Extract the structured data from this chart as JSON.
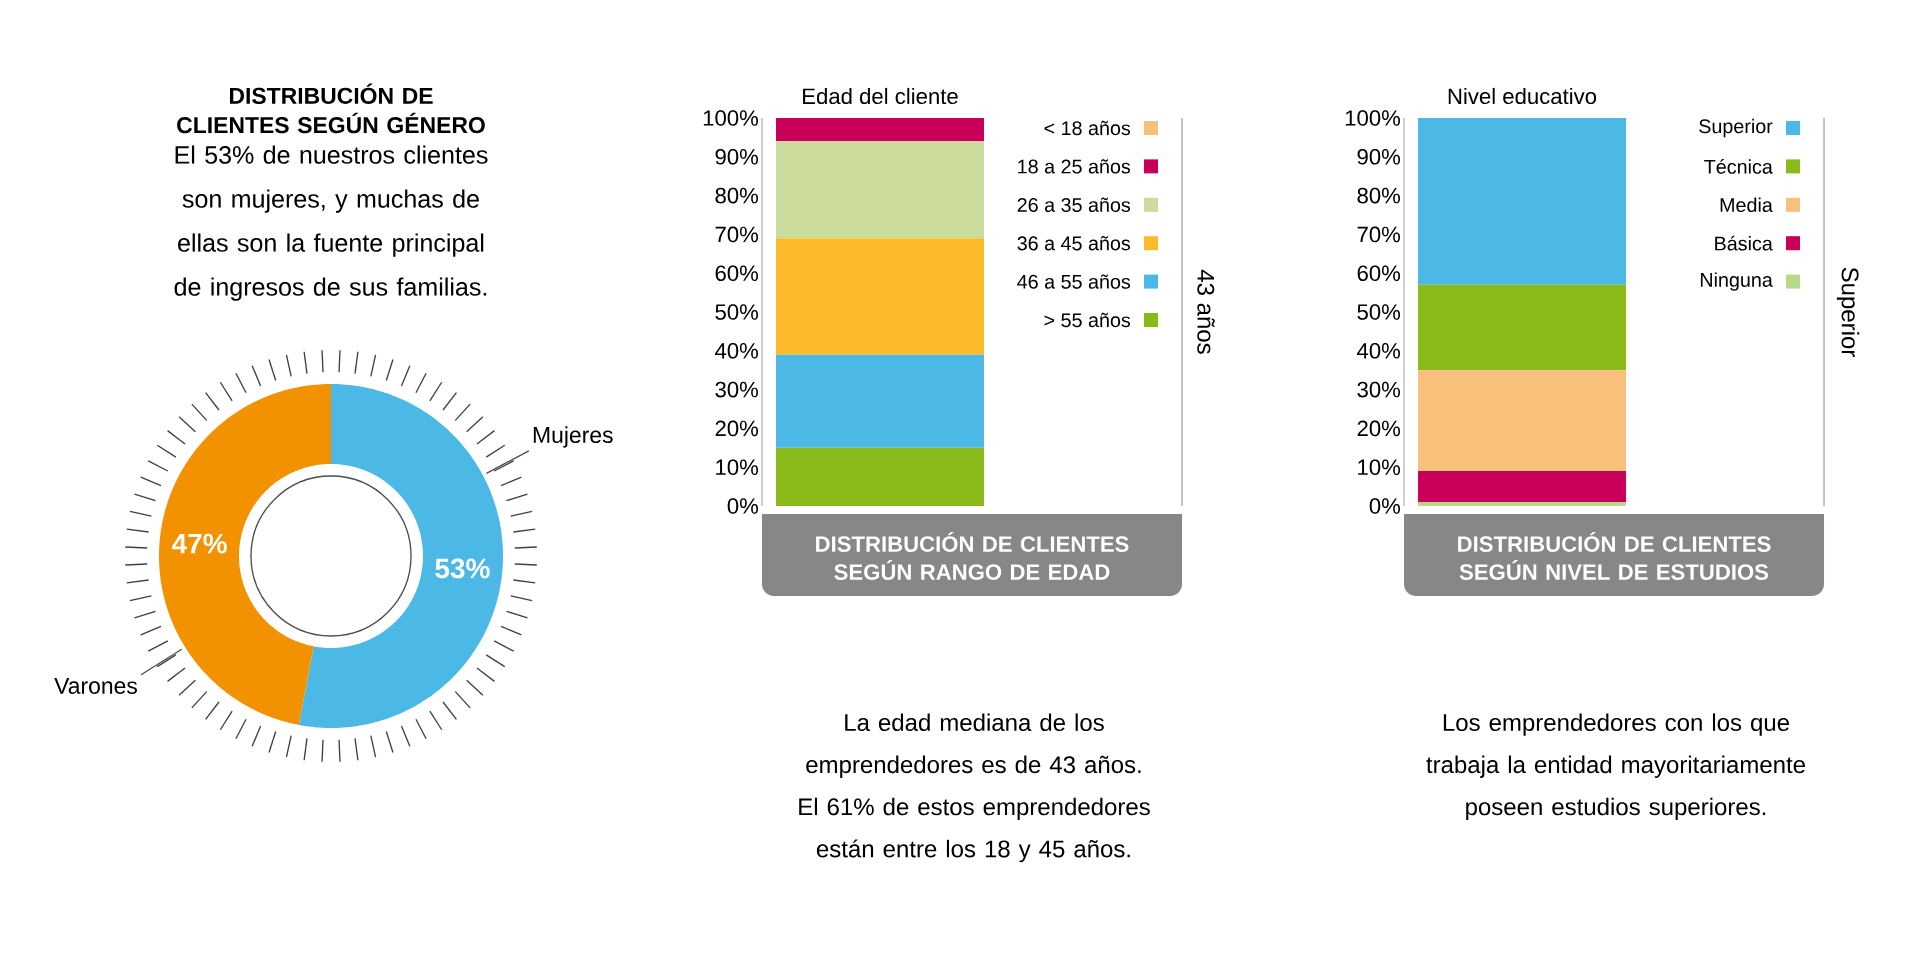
{
  "chart_data": [
    {
      "type": "donut",
      "title": "DISTRIBUCIÓN DE CLIENTES SEGÚN GÉNERO",
      "subtitle": "El 53% de nuestros clientes son mujeres, y muchas de ellas son la fuente principal de ingresos de sus familias.",
      "categories": [
        "Mujeres",
        "Varones"
      ],
      "values": [
        53,
        47
      ],
      "colors": [
        "#4cb8e5",
        "#f39200"
      ],
      "value_labels": [
        "53%",
        "47%"
      ]
    },
    {
      "type": "bar",
      "stacked": true,
      "title": "DISTRIBUCIÓN DE CLIENTES SEGÚN RANGO DE EDAD",
      "subtitle": "Edad del cliente",
      "categories": [
        null
      ],
      "legend": "right",
      "series": [
        {
          "name": "> 55 años",
          "color": "#8aba1a",
          "values": [
            15
          ]
        },
        {
          "name": "46 a 55 años",
          "color": "#4cb8e5",
          "values": [
            24
          ]
        },
        {
          "name": "36 a 45 años",
          "color": "#fbbb2a",
          "values": [
            30
          ]
        },
        {
          "name": "26 a 35 años",
          "color": "#cbdc9c",
          "values": [
            25
          ]
        },
        {
          "name": "18 a 25 años",
          "color": "#c8005a",
          "values": [
            6
          ]
        },
        {
          "name": "< 18 años",
          "color": "#f8c07a",
          "values": [
            0
          ]
        }
      ],
      "ylim": [
        0,
        100
      ],
      "yticks": [
        {
          "value": 0,
          "label": "0%"
        },
        {
          "value": 10,
          "label": "10%"
        },
        {
          "value": 20,
          "label": "20%"
        },
        {
          "value": 30,
          "label": "30%"
        },
        {
          "value": 40,
          "label": "40%"
        },
        {
          "value": 50,
          "label": "50%"
        },
        {
          "value": 60,
          "label": "60%"
        },
        {
          "value": 70,
          "label": "70%"
        },
        {
          "value": 80,
          "label": "80%"
        },
        {
          "value": 90,
          "label": "90%"
        },
        {
          "value": 100,
          "label": "100%"
        }
      ],
      "annotations": [
        "43 años",
        "La edad mediana de los emprendedores es de 43 años. El 61% de estos emprendedores están entre los 18 y 45 años."
      ]
    },
    {
      "type": "bar",
      "stacked": true,
      "title": "DISTRIBUCIÓN DE CLIENTES SEGÚN NIVEL DE ESTUDIOS",
      "subtitle": "Nivel educativo",
      "categories": [
        null
      ],
      "legend": "right",
      "series": [
        {
          "name": "Ninguna",
          "color": "#b9d98a",
          "values": [
            1
          ]
        },
        {
          "name": "Básica",
          "color": "#c8005a",
          "values": [
            8
          ]
        },
        {
          "name": "Media",
          "color": "#f8c07a",
          "values": [
            26
          ]
        },
        {
          "name": "Técnica",
          "color": "#8aba1a",
          "values": [
            22
          ]
        },
        {
          "name": "Superior",
          "color": "#4cb8e5",
          "values": [
            43
          ]
        }
      ],
      "ylim": [
        0,
        100
      ],
      "yticks": [
        {
          "value": 0,
          "label": "0%"
        },
        {
          "value": 10,
          "label": "10%"
        },
        {
          "value": 20,
          "label": "20%"
        },
        {
          "value": 30,
          "label": "30%"
        },
        {
          "value": 40,
          "label": "40%"
        },
        {
          "value": 50,
          "label": "50%"
        },
        {
          "value": 60,
          "label": "60%"
        },
        {
          "value": 70,
          "label": "70%"
        },
        {
          "value": 80,
          "label": "80%"
        },
        {
          "value": 90,
          "label": "90%"
        },
        {
          "value": 100,
          "label": "100%"
        }
      ],
      "annotations": [
        "Superior",
        "Los emprendedores con los que trabaja la entidad mayoritariamente poseen estudios superiores."
      ]
    }
  ]
}
